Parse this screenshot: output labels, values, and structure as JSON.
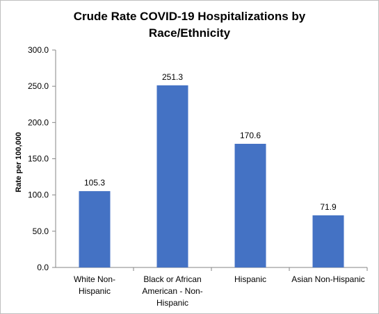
{
  "chart_data": {
    "type": "bar",
    "title_lines": [
      "Crude Rate COVID-19 Hospitalizations by",
      "Race/Ethnicity"
    ],
    "ylabel": "Rate per 100,000",
    "xlabel": "",
    "ylim": [
      0,
      300
    ],
    "yticks": [
      "0.0",
      "50.0",
      "100.0",
      "150.0",
      "200.0",
      "250.0",
      "300.0"
    ],
    "categories": [
      [
        "White  Non-",
        "Hispanic"
      ],
      [
        "Black or African",
        "American - Non-",
        "Hispanic"
      ],
      [
        "Hispanic"
      ],
      [
        "Asian Non-Hispanic"
      ]
    ],
    "values": [
      105.3,
      251.3,
      170.6,
      71.9
    ],
    "value_labels": [
      "105.3",
      "251.3",
      "170.6",
      "71.9"
    ],
    "bar_color": "#4472c4",
    "grid": false,
    "legend": "none"
  }
}
